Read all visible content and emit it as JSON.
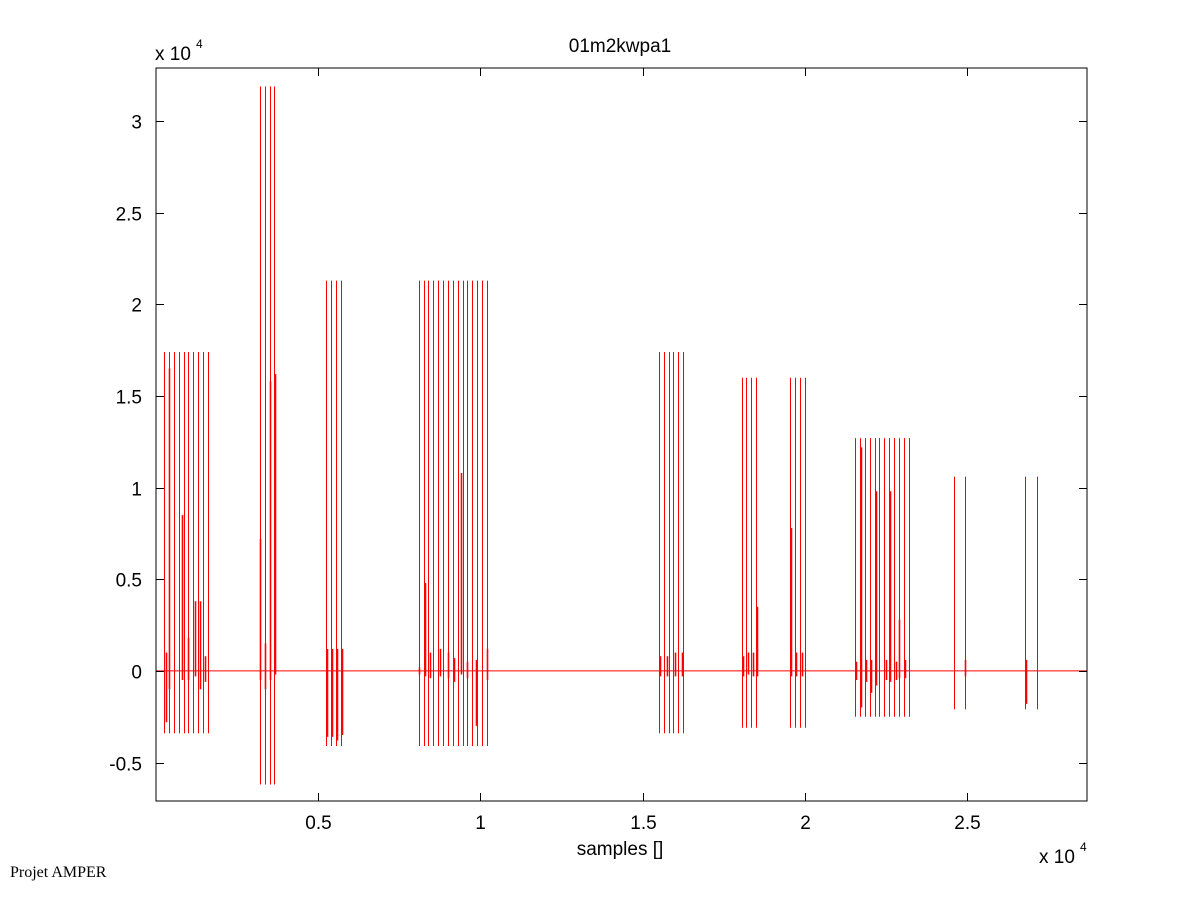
{
  "chart_data": {
    "type": "line",
    "title": "01m2kwpa1",
    "xlabel": "samples []",
    "ylabel": "",
    "x_exponent_label": "x 10",
    "x_exponent": "4",
    "y_exponent_label": "x 10",
    "y_exponent": "4",
    "xlim": [
      0,
      2.87
    ],
    "ylim": [
      -0.71,
      3.29
    ],
    "xticks": [
      0.5,
      1,
      1.5,
      2,
      2.5
    ],
    "xtick_labels": [
      "0.5",
      "1",
      "1.5",
      "2",
      "2.5"
    ],
    "yticks": [
      -0.5,
      0,
      0.5,
      1,
      1.5,
      2,
      2.5,
      3
    ],
    "ytick_labels": [
      "-0.5",
      "0",
      "0.5",
      "1",
      "1.5",
      "2",
      "2.5",
      "3"
    ],
    "grid": false,
    "series_color": "#ff0000",
    "baseline": 0,
    "groups": [
      {
        "x": [
          0.025,
          0.04,
          0.055,
          0.07,
          0.085,
          0.1,
          0.115,
          0.13,
          0.145,
          0.16
        ],
        "top": 1.74,
        "bottom": -0.34,
        "inner": [
          [
            0.03,
            0.1,
            -0.28
          ],
          [
            0.04,
            1.65,
            -0.1
          ],
          [
            0.08,
            0.85,
            -0.05
          ],
          [
            0.1,
            0.18,
            -0.05
          ],
          [
            0.12,
            0.38,
            -0.03
          ],
          [
            0.135,
            0.38,
            -0.1
          ],
          [
            0.15,
            0.08,
            -0.06
          ]
        ]
      },
      {
        "x": [
          0.32,
          0.335,
          0.35,
          0.365
        ],
        "top": 3.19,
        "bottom": -0.62,
        "inner": [
          [
            0.322,
            0.72,
            -0.05
          ],
          [
            0.337,
            0.15,
            -0.1
          ],
          [
            0.352,
            1.58,
            -0.05
          ],
          [
            0.367,
            1.62,
            -0.02
          ]
        ]
      },
      {
        "x": [
          0.525,
          0.54,
          0.555,
          0.57
        ],
        "top": 2.13,
        "bottom": -0.41,
        "inner": [
          [
            0.528,
            0.12,
            -0.36
          ],
          [
            0.543,
            0.12,
            -0.36
          ],
          [
            0.558,
            0.12,
            -0.38
          ],
          [
            0.573,
            0.12,
            -0.35
          ]
        ]
      },
      {
        "x": [
          0.81,
          0.825,
          0.84,
          0.855,
          0.87,
          0.885,
          0.9,
          0.915,
          0.93,
          0.945,
          0.96,
          0.975,
          0.99,
          1.005,
          1.02
        ],
        "top": 2.13,
        "bottom": -0.41,
        "inner": [
          [
            0.812,
            0.02,
            -0.02
          ],
          [
            0.828,
            0.48,
            -0.03
          ],
          [
            0.845,
            0.1,
            -0.04
          ],
          [
            0.875,
            0.12,
            -0.03
          ],
          [
            0.9,
            0.1,
            -0.04
          ],
          [
            0.92,
            0.07,
            -0.06
          ],
          [
            0.94,
            1.08,
            -0.02
          ],
          [
            0.96,
            0.05,
            -0.04
          ],
          [
            0.985,
            0.06,
            -0.3
          ],
          [
            1.02,
            0.12,
            -0.05
          ]
        ]
      },
      {
        "x": [
          1.55,
          1.565,
          1.58,
          1.595,
          1.61,
          1.625
        ],
        "top": 1.74,
        "bottom": -0.34,
        "inner": [
          [
            1.553,
            0.08,
            -0.03
          ],
          [
            1.575,
            0.08,
            -0.03
          ],
          [
            1.6,
            0.1,
            -0.03
          ],
          [
            1.62,
            0.1,
            -0.03
          ]
        ]
      },
      {
        "x": [
          1.805,
          1.82,
          1.835,
          1.85
        ],
        "top": 1.6,
        "bottom": -0.31,
        "inner": [
          [
            1.81,
            0.08,
            -0.03
          ],
          [
            1.825,
            0.1,
            -0.02
          ],
          [
            1.84,
            0.1,
            -0.03
          ],
          [
            1.853,
            0.35,
            -0.03
          ]
        ]
      },
      {
        "x": [
          1.955,
          1.97,
          1.985,
          2.0
        ],
        "top": 1.6,
        "bottom": -0.31,
        "inner": [
          [
            1.958,
            0.78,
            -0.03
          ],
          [
            1.972,
            0.1,
            -0.03
          ],
          [
            1.99,
            0.1,
            -0.03
          ]
        ]
      },
      {
        "x": [
          2.155,
          2.17,
          2.185,
          2.2,
          2.215,
          2.23,
          2.245,
          2.26,
          2.275,
          2.29,
          2.305,
          2.32
        ],
        "top": 1.27,
        "bottom": -0.25,
        "inner": [
          [
            2.158,
            0.05,
            -0.05
          ],
          [
            2.172,
            1.22,
            -0.2
          ],
          [
            2.19,
            0.06,
            -0.06
          ],
          [
            2.205,
            0.06,
            -0.12
          ],
          [
            2.22,
            0.98,
            -0.08
          ],
          [
            2.25,
            0.06,
            -0.05
          ],
          [
            2.263,
            0.98,
            -0.06
          ],
          [
            2.28,
            0.05,
            -0.05
          ],
          [
            2.29,
            0.28,
            -0.04
          ],
          [
            2.31,
            0.06,
            -0.04
          ]
        ]
      },
      {
        "x": [
          2.46,
          2.495
        ],
        "top": 1.06,
        "bottom": -0.21,
        "inner": [
          [
            2.495,
            0.06,
            -0.03
          ]
        ]
      },
      {
        "x": [
          2.68,
          2.715
        ],
        "top": 1.06,
        "bottom": -0.21,
        "inner": [
          [
            2.682,
            0.06,
            -0.18
          ]
        ]
      }
    ]
  },
  "footer": {
    "text": "Projet AMPER"
  }
}
